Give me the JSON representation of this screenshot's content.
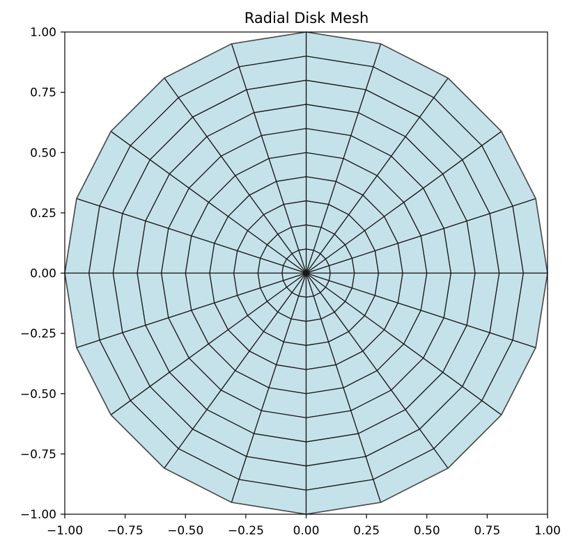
{
  "chart_data": {
    "type": "mesh",
    "title": "Radial Disk Mesh",
    "xlabel": "",
    "ylabel": "",
    "xlim": [
      -1.0,
      1.0
    ],
    "ylim": [
      -1.0,
      1.0
    ],
    "xticks": [
      "−1.00",
      "−0.75",
      "−0.50",
      "−0.25",
      "0.00",
      "0.25",
      "0.50",
      "0.75",
      "1.00"
    ],
    "yticks": [
      "1.00",
      "0.75",
      "0.50",
      "0.25",
      "0.00",
      "−0.25",
      "−0.50",
      "−0.75",
      "−1.00"
    ],
    "xtick_values": [
      -1.0,
      -0.75,
      -0.5,
      -0.25,
      0.0,
      0.25,
      0.5,
      0.75,
      1.0
    ],
    "ytick_values": [
      1.0,
      0.75,
      0.5,
      0.25,
      0.0,
      -0.25,
      -0.5,
      -0.75,
      -1.0
    ],
    "radial_divisions": 10,
    "angular_divisions": 20,
    "outer_radius": 1.0,
    "grid": false,
    "colors": {
      "face": "#c5e2eb",
      "edge": "#1a1a1a",
      "outer_edge": "#4a4a4a",
      "axes": "#000000"
    }
  }
}
